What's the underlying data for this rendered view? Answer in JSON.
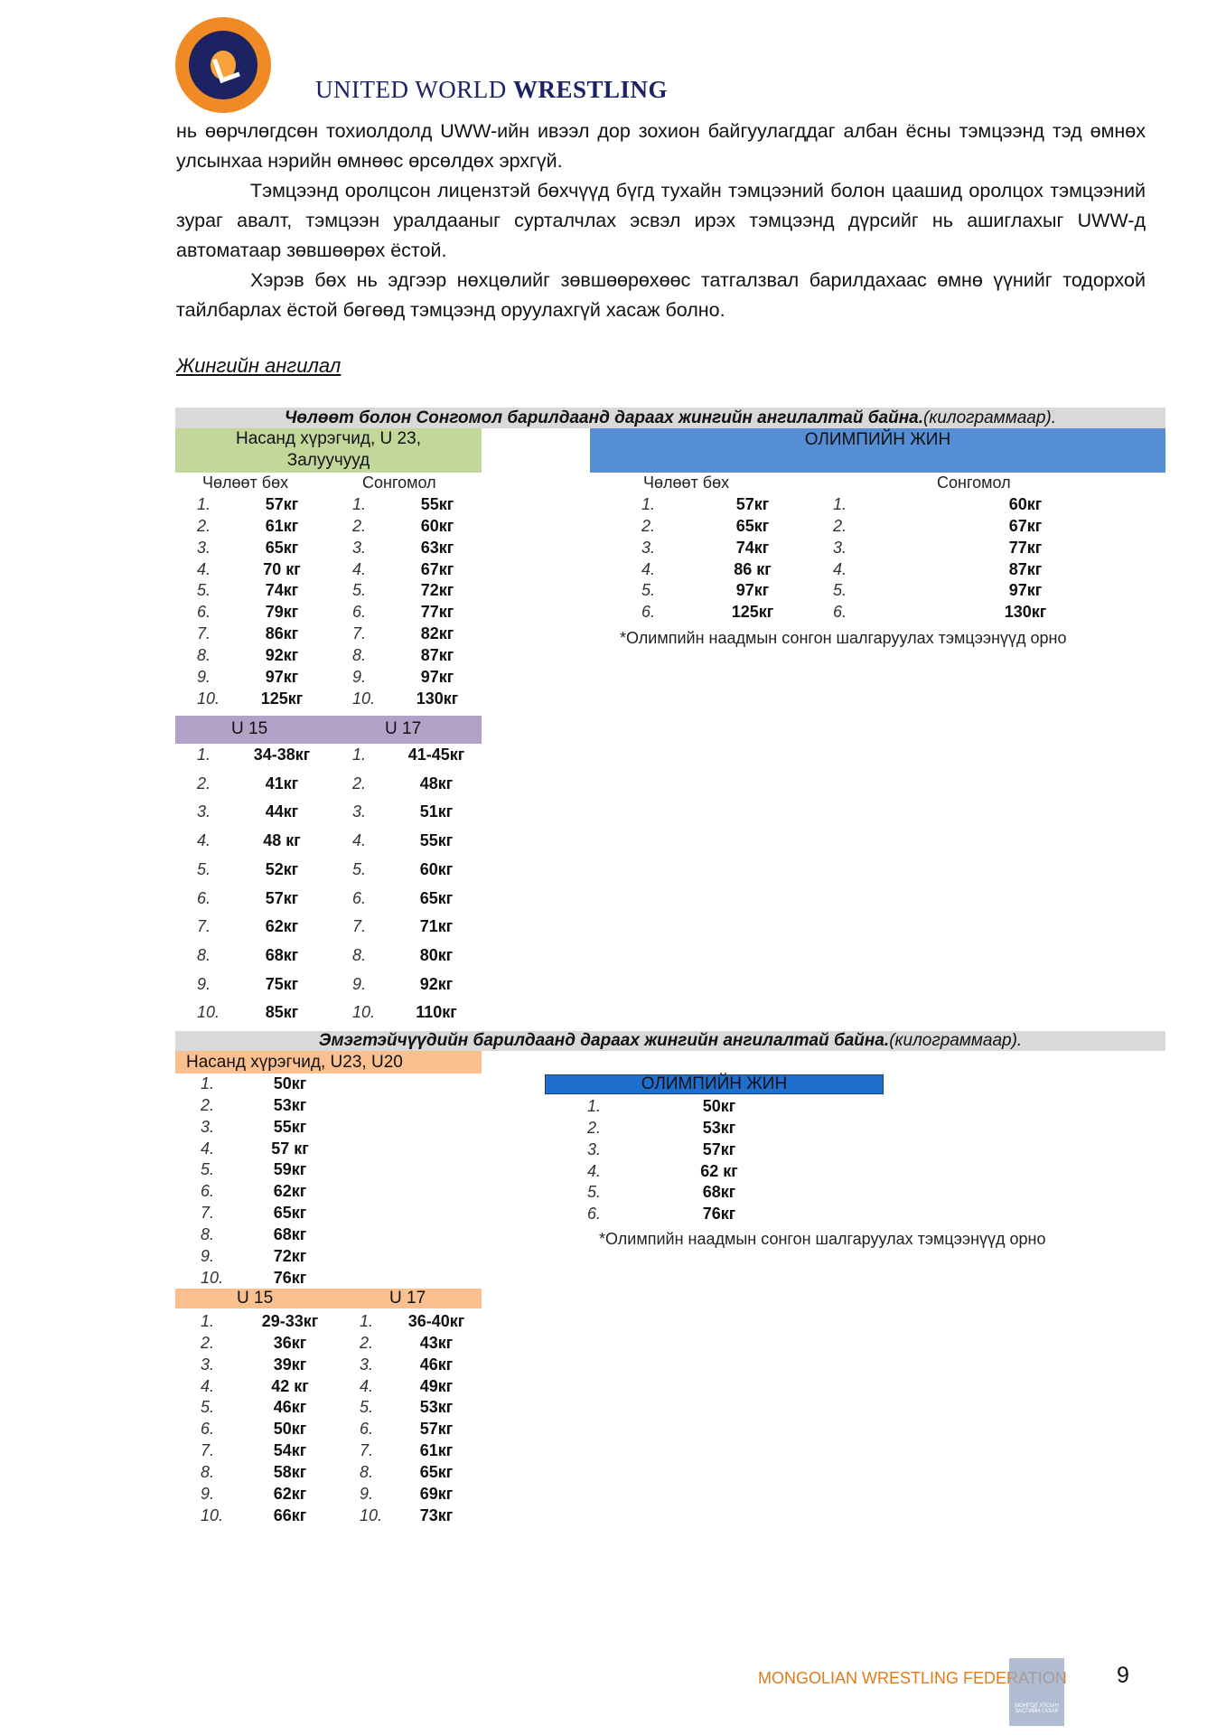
{
  "header": {
    "brand_light": "UNITED WORLD ",
    "brand_bold": "WRESTLING",
    "logo_color": "#f08a24"
  },
  "body": {
    "p1": "нь өөрчлөгдсөн тохиолдолд UWW-ийн ивээл дор зохион байгуулагддаг албан ёсны тэмцээнд тэд өмнөх улсынхаа нэрийн өмнөөс өрсөлдөх эрхгүй.",
    "p2": "Тэмцээнд оролцсон лицензтэй бөхчүүд бүгд тухайн тэмцээний болон цаашид оролцох тэмцээний зураг авалт, тэмцээн уралдааныг сурталчлах эсвэл ирэх тэмцээнд дүрсийг нь ашиглахыг UWW-д автоматаар зөвшөөрөх ёстой.",
    "p3": "Хэрэв бөх нь эдгээр нөхцөлийг зөвшөөрөхөөс татгалзвал барилдахаас өмнө үүнийг тодорхой тайлбарлах ёстой бөгөөд  тэмцээнд оруулахгүй хасаж болно.",
    "section_title": "Жингийн ангилал"
  },
  "men": {
    "banner": "Чөлөөт болон Сонгомол барилдаанд дараах жингийн ангилалтай байна.",
    "banner_unit": "(килограммаар).",
    "senior_label": "Насанд хүрэгчид, U 23, Залуучууд",
    "olympic_label": "ОЛИМПИЙН ЖИН",
    "freestyle_label": "Чөлөөт бөх",
    "greco_label": "Сонгомол",
    "senior_free": [
      "57кг",
      "61кг",
      "65кг",
      "70 кг",
      "74кг",
      "79кг",
      "86кг",
      "92кг",
      "97кг",
      "125кг"
    ],
    "senior_greco": [
      "55кг",
      "60кг",
      "63кг",
      "67кг",
      "72кг",
      "77кг",
      "82кг",
      "87кг",
      "97кг",
      "130кг"
    ],
    "olympic_free": [
      "57кг",
      "65кг",
      "74кг",
      "86 кг",
      "97кг",
      "125кг"
    ],
    "olympic_greco": [
      "60кг",
      "67кг",
      "77кг",
      "87кг",
      "97кг",
      "130кг"
    ],
    "olympic_note": "*Олимпийн наадмын сонгон шалгаруулах тэмцээнүүд орно",
    "u15_label": "U 15",
    "u17_label": "U 17",
    "u15": [
      "34-38кг",
      "41кг",
      "44кг",
      "48 кг",
      "52кг",
      "57кг",
      "62кг",
      "68кг",
      "75кг",
      "85кг"
    ],
    "u17": [
      "41-45кг",
      "48кг",
      "51кг",
      "55кг",
      "60кг",
      "65кг",
      "71кг",
      "80кг",
      "92кг",
      "110кг"
    ]
  },
  "women": {
    "banner": "Эмэгтэйчүүдийн барилдаанд дараах жингийн ангилалтай байна.",
    "banner_unit": "(килограммаар).",
    "senior_label": "Насанд хүрэгчид, U23, U20",
    "senior": [
      "50кг",
      "53кг",
      "55кг",
      "57 кг",
      "59кг",
      "62кг",
      "65кг",
      "68кг",
      "72кг",
      "76кг"
    ],
    "olympic_label": "ОЛИМПИЙН ЖИН",
    "olympic": [
      "50кг",
      "53кг",
      "57кг",
      "62 кг",
      "68кг",
      "76кг"
    ],
    "olympic_note": "*Олимпийн наадмын сонгон шалгаруулах тэмцээнүүд орно",
    "u15_label": "U 15",
    "u17_label": "U 17",
    "u15": [
      "29-33кг",
      "36кг",
      "39кг",
      "42 кг",
      "46кг",
      "50кг",
      "54кг",
      "58кг",
      "62кг",
      "66кг"
    ],
    "u17": [
      "36-40кг",
      "43кг",
      "46кг",
      "49кг",
      "53кг",
      "57кг",
      "61кг",
      "65кг",
      "69кг",
      "73кг"
    ]
  },
  "footer": {
    "federation": "MONGOLIAN WRESTLING FEDERATION",
    "page_number": "9",
    "stamp_text": "МОНГОЛ УЛСЫН ЗАСГИЙН ГАЗАР",
    "accent": "#e07b18"
  }
}
